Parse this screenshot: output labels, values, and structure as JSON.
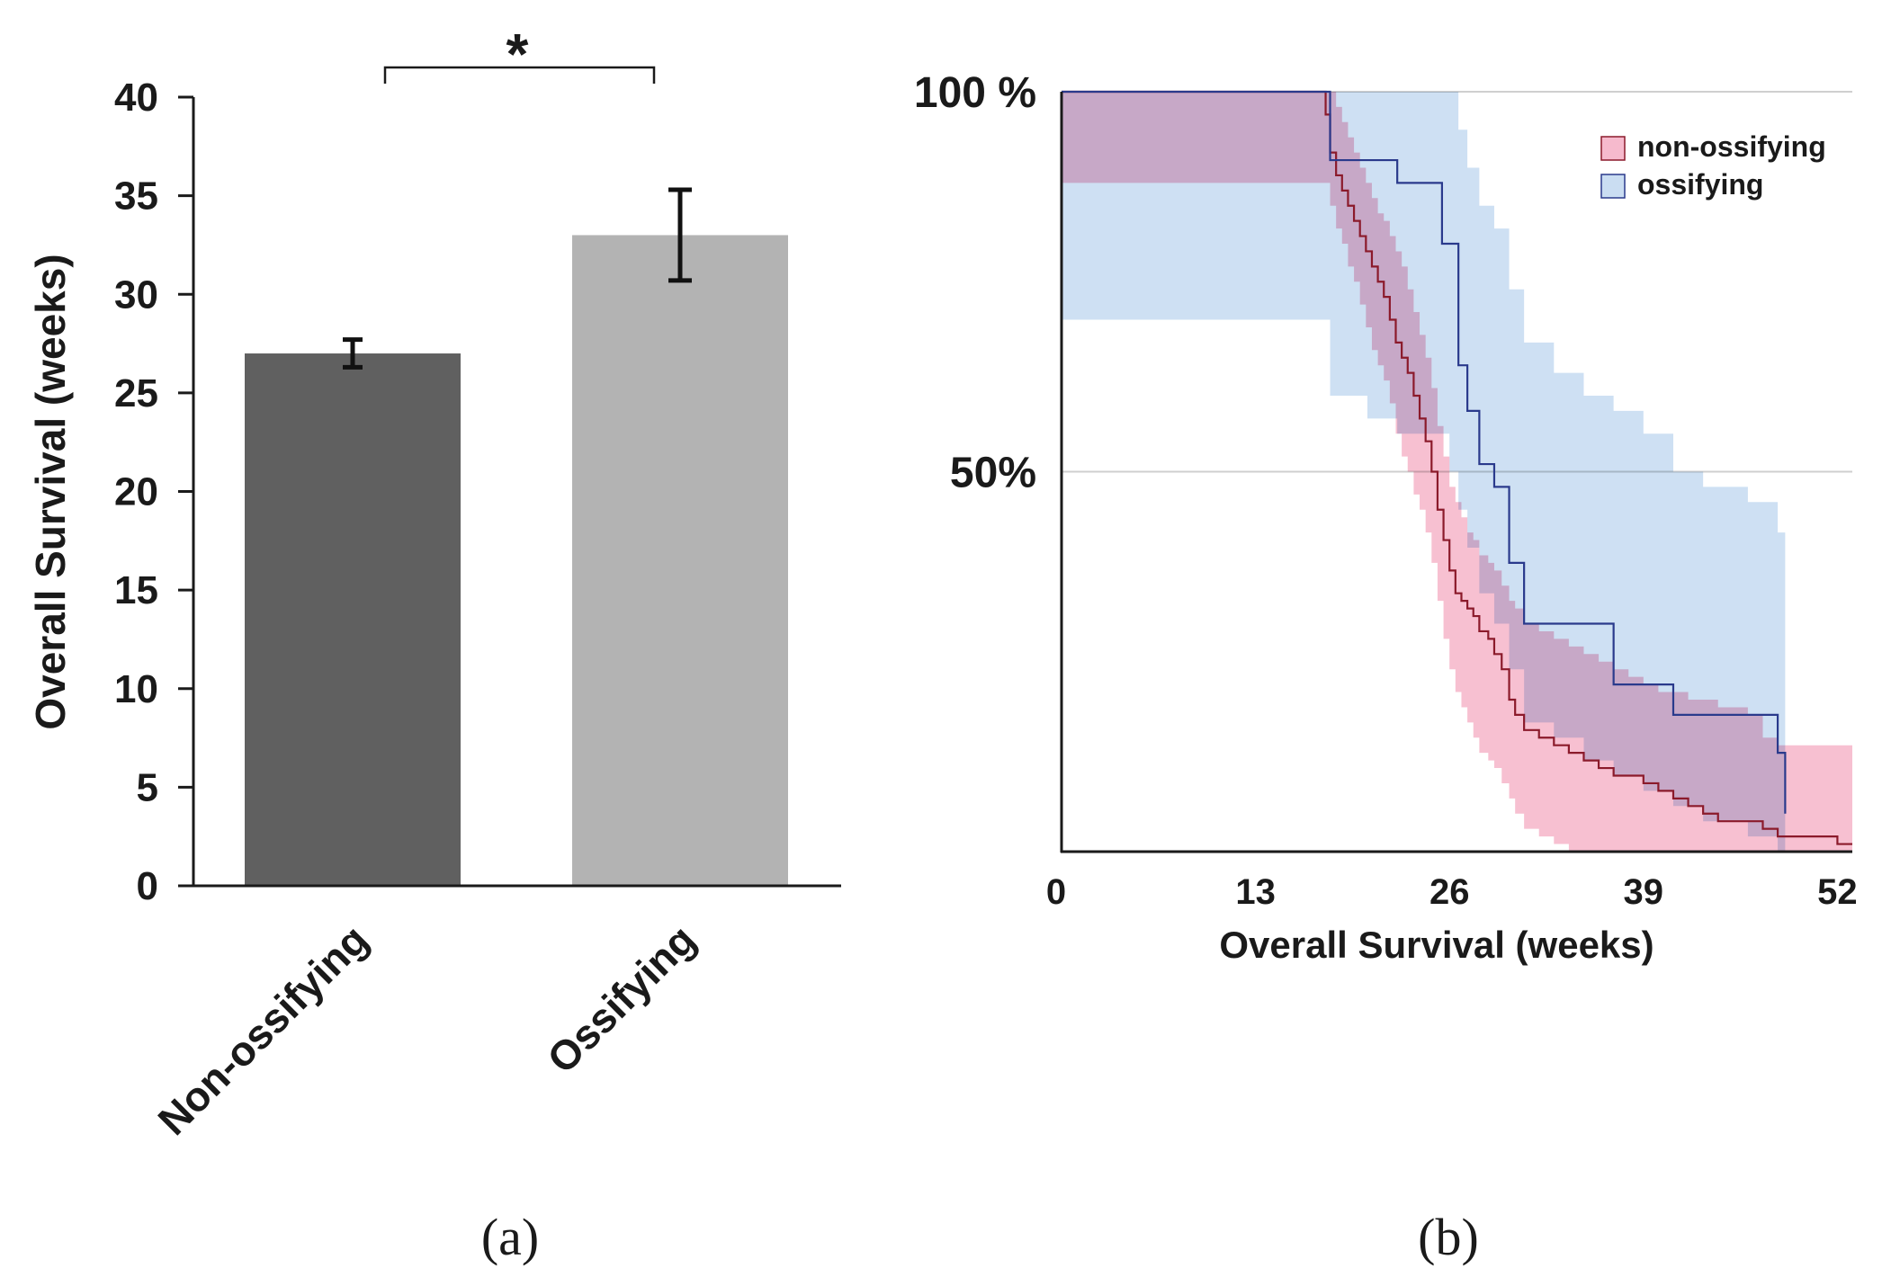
{
  "chart_data": [
    {
      "type": "bar",
      "panel_label": "(a)",
      "categories": [
        "Non-ossifying",
        "Ossifying"
      ],
      "values": [
        27,
        33
      ],
      "error": [
        0.7,
        2.3
      ],
      "colors": [
        "#606060",
        "#b3b3b3"
      ],
      "ylabel": "Overall Survival (weeks)",
      "ylim": [
        0,
        40
      ],
      "yticks": [
        0,
        5,
        10,
        15,
        20,
        25,
        30,
        35,
        40
      ],
      "significance": "*"
    },
    {
      "type": "line",
      "panel_label": "(b)",
      "xlabel": "Overall Survival (weeks)",
      "xlim": [
        0,
        53
      ],
      "xticks": [
        0,
        13,
        26,
        39,
        52
      ],
      "ylim": [
        0,
        100
      ],
      "yticks": [
        {
          "value": 50,
          "label": "50%"
        },
        {
          "value": 100,
          "label": "100 %"
        }
      ],
      "grid": true,
      "legend_position": "top-right",
      "series": [
        {
          "name": "non-ossifying",
          "line_color": "#8b1a2b",
          "band_color": "#f08cab",
          "x": [
            0,
            17.7,
            18,
            18.4,
            18.8,
            19.2,
            19.6,
            20,
            20.4,
            20.8,
            21.2,
            21.6,
            22,
            22.4,
            22.8,
            23.2,
            23.6,
            24,
            24.4,
            24.8,
            25.2,
            25.6,
            26,
            26.4,
            26.8,
            27.2,
            27.6,
            28,
            28.6,
            29,
            29.5,
            30,
            30.4,
            31,
            32,
            33,
            34,
            35,
            36,
            37,
            38,
            39,
            40,
            41,
            42,
            43,
            44,
            45,
            46,
            47,
            48,
            49,
            50,
            51,
            52,
            53
          ],
          "y": [
            100,
            97,
            92,
            89,
            87,
            85,
            83,
            81,
            79,
            77,
            75,
            73,
            70,
            67,
            65,
            63,
            60,
            57,
            54,
            50,
            45,
            41,
            37,
            34,
            33,
            32,
            31,
            29,
            28,
            26,
            24,
            20,
            18,
            16,
            15,
            14,
            13,
            12,
            11,
            10,
            10,
            9,
            8,
            7,
            6,
            5,
            4,
            4,
            4,
            3,
            2,
            2,
            2,
            2,
            1,
            1
          ],
          "lower": [
            88,
            88,
            85,
            82,
            80,
            77,
            75,
            72,
            69,
            66,
            64,
            62,
            59,
            55,
            52,
            50,
            47,
            45,
            42,
            38,
            33,
            28,
            24,
            21,
            19,
            17,
            15,
            13,
            12,
            11,
            9,
            7,
            5,
            3,
            2,
            1,
            0,
            0,
            0,
            0,
            0,
            0,
            0,
            0,
            0,
            0,
            0,
            0,
            0,
            0,
            0,
            0,
            0,
            0,
            0,
            0
          ],
          "upper": [
            100,
            100,
            100,
            98,
            96,
            94,
            92,
            90,
            88,
            86,
            84,
            83,
            81,
            79,
            77,
            74,
            71,
            68,
            65,
            61,
            56,
            52,
            48,
            46,
            44,
            42,
            41,
            39,
            38,
            37,
            35,
            33,
            32,
            30,
            29,
            28,
            27,
            26,
            25,
            24,
            23,
            22,
            21,
            21,
            20,
            20,
            19,
            19,
            18,
            15,
            14,
            14,
            14,
            14,
            14,
            14
          ]
        },
        {
          "name": "ossifying",
          "line_color": "#2a3a8c",
          "band_color": "#a6c6ea",
          "x": [
            0,
            17.6,
            18,
            20.5,
            22.5,
            25.5,
            26,
            26.6,
            27.2,
            28,
            29,
            30,
            31,
            33,
            35,
            37,
            39,
            41,
            43,
            46,
            48,
            48.5
          ],
          "y": [
            100,
            100,
            91,
            91,
            88,
            80,
            80,
            64,
            58,
            51,
            48,
            38,
            30,
            30,
            30,
            22,
            22,
            18,
            18,
            18,
            13,
            5
          ],
          "lower": [
            70,
            70,
            60,
            57,
            55,
            55,
            50,
            45,
            40,
            34,
            30,
            24,
            17,
            15,
            12,
            10,
            8,
            6,
            4,
            2,
            0,
            0
          ],
          "upper": [
            100,
            100,
            100,
            100,
            100,
            100,
            100,
            95,
            90,
            85,
            82,
            74,
            67,
            63,
            60,
            58,
            55,
            50,
            48,
            46,
            42,
            42
          ]
        }
      ]
    }
  ]
}
